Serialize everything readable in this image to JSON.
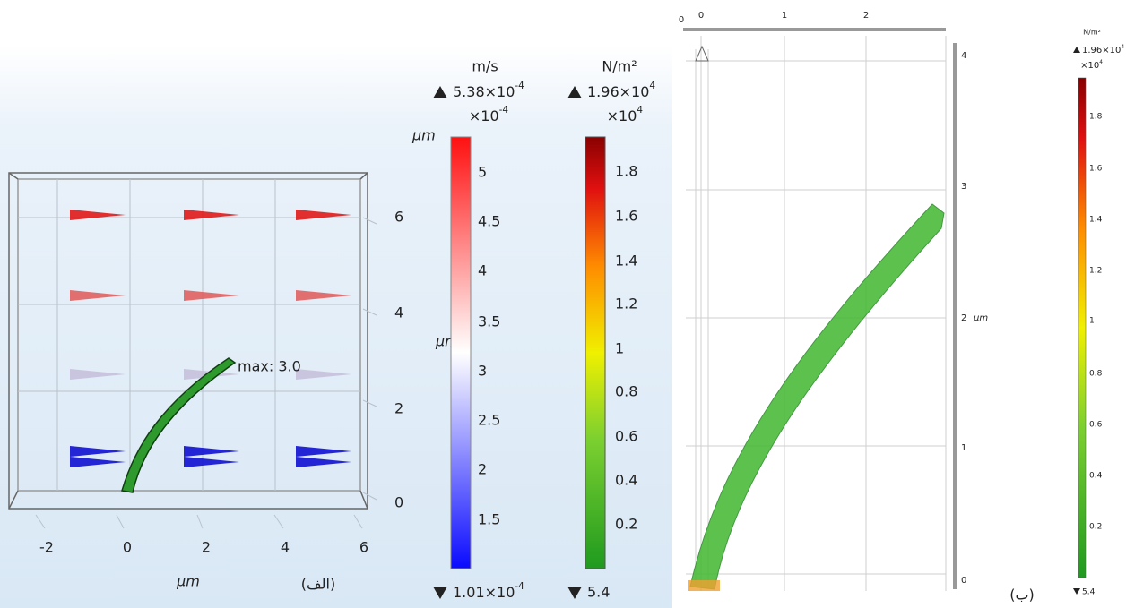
{
  "panel_a": {
    "caption": "(الف)",
    "annotation": "max: 3.0",
    "x_unit": "µm",
    "y_unit": "µm",
    "z_unit": "µm",
    "x_ticks": [
      -2,
      0,
      2,
      4,
      6
    ],
    "y_ticks": [
      6,
      4,
      2,
      0
    ],
    "velocity_legend": {
      "unit": "m/s",
      "max": {
        "mantissa": "5.38×10",
        "exponent": "-4"
      },
      "multiplier": {
        "mantissa": "×10",
        "exponent": "-4"
      },
      "ticks": [
        5,
        4.5,
        4,
        3.5,
        3,
        2.5,
        2,
        1.5
      ],
      "min": {
        "mantissa": "1.01×10",
        "exponent": "-4"
      }
    },
    "stress_legend": {
      "unit": "N/m²",
      "max": {
        "mantissa": "1.96×10",
        "exponent": "4"
      },
      "multiplier": {
        "mantissa": "×10",
        "exponent": "4"
      },
      "ticks": [
        1.8,
        1.6,
        1.4,
        1.2,
        1,
        0.8,
        0.6,
        0.4,
        0.2
      ],
      "min": "5.4"
    }
  },
  "panel_b": {
    "caption": "(ب)",
    "y_unit": "µm",
    "top_origin": 0,
    "x_ticks": [
      0,
      1,
      2
    ],
    "y_ticks": [
      4,
      3,
      2,
      1,
      0
    ],
    "stress_legend": {
      "unit": "N/m²",
      "max": {
        "mantissa": "1.96×10",
        "exponent": "4"
      },
      "multiplier": {
        "mantissa": "×10",
        "exponent": "4"
      },
      "ticks": [
        1.8,
        1.6,
        1.4,
        1.2,
        1,
        0.8,
        0.6,
        0.4,
        0.2
      ],
      "min": "5.4"
    }
  }
}
